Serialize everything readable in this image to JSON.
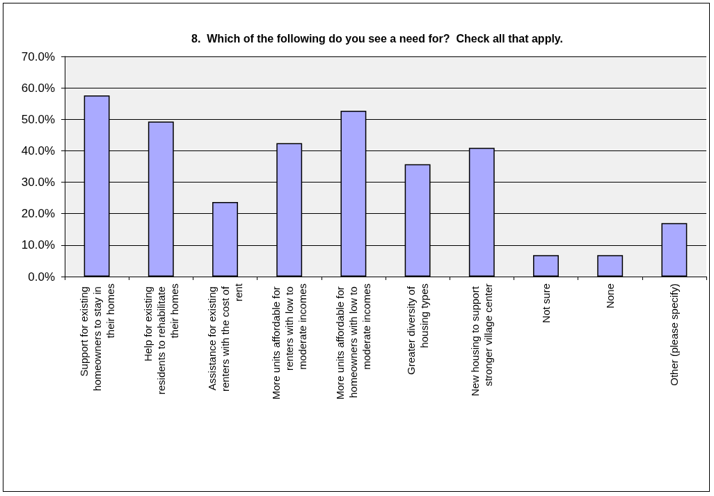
{
  "chart_data": {
    "type": "bar",
    "title": "8.  Which of the following do you see a need for?  Check all that apply.",
    "categories": [
      "Support for existing homeowners to stay in their homes",
      "Help for existing residents to rehabilitate their homes",
      "Assistance for existing renters with the cost of rent",
      "More units affordable for renters with low to moderate incomes",
      "More units affordable for homeowners with low to moderate incomes",
      "Greater diversity of housing types",
      "New housing to support stronger village center",
      "Not sure",
      "None",
      "Other (please specify)"
    ],
    "values": [
      57.6,
      49.3,
      23.7,
      42.4,
      52.7,
      35.7,
      40.9,
      6.8,
      6.8,
      17.0
    ],
    "color": "#aaaaff",
    "ylim": [
      0,
      70
    ],
    "yticks": [
      {
        "value": 0,
        "label": "0.0%"
      },
      {
        "value": 10,
        "label": "10.0%"
      },
      {
        "value": 20,
        "label": "20.0%"
      },
      {
        "value": 30,
        "label": "30.0%"
      },
      {
        "value": 40,
        "label": "40.0%"
      },
      {
        "value": 50,
        "label": "50.0%"
      },
      {
        "value": 60,
        "label": "60.0%"
      },
      {
        "value": 70,
        "label": "70.0%"
      }
    ],
    "grid": "y"
  }
}
